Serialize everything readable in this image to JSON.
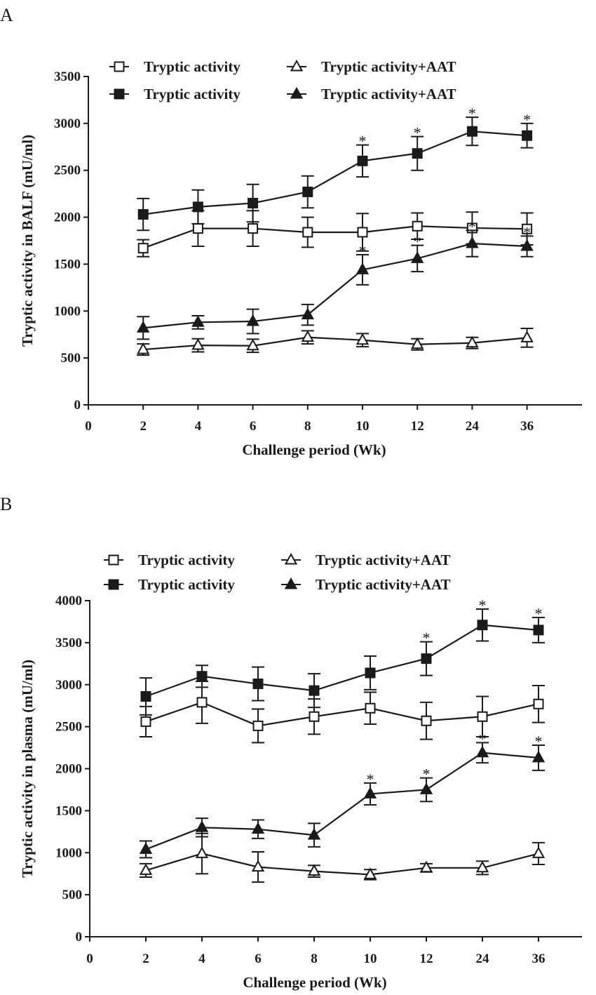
{
  "chart_data": [
    {
      "panel_label": "A",
      "type": "line",
      "xlabel": "Challenge period (Wk)",
      "ylabel": "Tryptic activity in BALF (mU/ml)",
      "categories": [
        "0",
        "2",
        "4",
        "6",
        "8",
        "10",
        "12",
        "24",
        "36"
      ],
      "ylim": [
        0,
        3500
      ],
      "yticks": [
        0,
        500,
        1000,
        1500,
        2000,
        2500,
        3000,
        3500
      ],
      "legend_position": "top",
      "series": [
        {
          "name": "Tryptic activity",
          "marker": "square-open",
          "x": [
            "2",
            "4",
            "6",
            "8",
            "10",
            "12",
            "24",
            "36"
          ],
          "values": [
            1670,
            1880,
            1880,
            1840,
            1840,
            1905,
            1885,
            1875
          ],
          "errors": [
            90,
            190,
            190,
            160,
            200,
            140,
            170,
            170
          ],
          "stars": [
            false,
            false,
            false,
            false,
            false,
            false,
            false,
            false
          ]
        },
        {
          "name": "Tryptic activity",
          "marker": "square-filled",
          "x": [
            "2",
            "4",
            "6",
            "8",
            "10",
            "12",
            "24",
            "36"
          ],
          "values": [
            2030,
            2110,
            2150,
            2270,
            2600,
            2680,
            2915,
            2870
          ],
          "errors": [
            170,
            180,
            200,
            170,
            170,
            180,
            150,
            130
          ],
          "stars": [
            false,
            false,
            false,
            false,
            true,
            true,
            true,
            true
          ]
        },
        {
          "name": "Tryptic activity+AAT",
          "marker": "triangle-open",
          "x": [
            "2",
            "4",
            "6",
            "8",
            "10",
            "12",
            "24",
            "36"
          ],
          "values": [
            590,
            635,
            630,
            720,
            690,
            645,
            660,
            715
          ],
          "errors": [
            60,
            70,
            70,
            70,
            70,
            60,
            60,
            100
          ],
          "stars": [
            false,
            false,
            false,
            false,
            false,
            false,
            false,
            false
          ]
        },
        {
          "name": "Tryptic activity+AAT",
          "marker": "triangle-filled",
          "x": [
            "2",
            "4",
            "6",
            "8",
            "10",
            "12",
            "24",
            "36"
          ],
          "values": [
            820,
            880,
            890,
            960,
            1440,
            1560,
            1720,
            1690
          ],
          "errors": [
            120,
            70,
            130,
            110,
            160,
            140,
            140,
            110
          ],
          "stars": [
            false,
            false,
            false,
            false,
            true,
            true,
            true,
            true
          ]
        }
      ]
    },
    {
      "panel_label": "B",
      "type": "line",
      "xlabel": "Challenge period (Wk)",
      "ylabel": "Tryptic activity in plasma (mU/ml)",
      "categories": [
        "0",
        "2",
        "4",
        "6",
        "8",
        "10",
        "12",
        "24",
        "36"
      ],
      "ylim": [
        0,
        4000
      ],
      "yticks": [
        0,
        500,
        1000,
        1500,
        2000,
        2500,
        3000,
        3500,
        4000
      ],
      "legend_position": "top",
      "series": [
        {
          "name": "Tryptic activity",
          "marker": "square-open",
          "x": [
            "2",
            "4",
            "6",
            "8",
            "10",
            "12",
            "24",
            "36"
          ],
          "values": [
            2560,
            2790,
            2510,
            2620,
            2720,
            2570,
            2620,
            2770
          ],
          "errors": [
            180,
            250,
            200,
            210,
            190,
            220,
            240,
            220
          ],
          "stars": [
            false,
            false,
            false,
            false,
            false,
            false,
            false,
            false
          ]
        },
        {
          "name": "Tryptic activity",
          "marker": "square-filled",
          "x": [
            "2",
            "4",
            "6",
            "8",
            "10",
            "12",
            "24",
            "36"
          ],
          "values": [
            2860,
            3100,
            3010,
            2930,
            3140,
            3310,
            3710,
            3650
          ],
          "errors": [
            220,
            130,
            200,
            200,
            200,
            200,
            190,
            150
          ],
          "stars": [
            false,
            false,
            false,
            false,
            false,
            true,
            true,
            true
          ]
        },
        {
          "name": "Tryptic activity+AAT",
          "marker": "triangle-open",
          "x": [
            "2",
            "4",
            "6",
            "8",
            "10",
            "12",
            "24",
            "36"
          ],
          "values": [
            790,
            990,
            830,
            780,
            740,
            820,
            820,
            990
          ],
          "errors": [
            80,
            240,
            180,
            70,
            60,
            50,
            80,
            130
          ],
          "stars": [
            false,
            false,
            false,
            false,
            false,
            false,
            false,
            false
          ]
        },
        {
          "name": "Tryptic activity+AAT",
          "marker": "triangle-filled",
          "x": [
            "2",
            "4",
            "6",
            "8",
            "10",
            "12",
            "24",
            "36"
          ],
          "values": [
            1040,
            1300,
            1280,
            1210,
            1700,
            1750,
            2190,
            2130
          ],
          "errors": [
            100,
            110,
            110,
            140,
            130,
            140,
            120,
            150
          ],
          "stars": [
            false,
            false,
            false,
            false,
            true,
            true,
            true,
            true
          ]
        }
      ]
    }
  ],
  "significance_marker": "*",
  "colors": {
    "ink": "#1a1a1a",
    "background": "#ffffff"
  }
}
